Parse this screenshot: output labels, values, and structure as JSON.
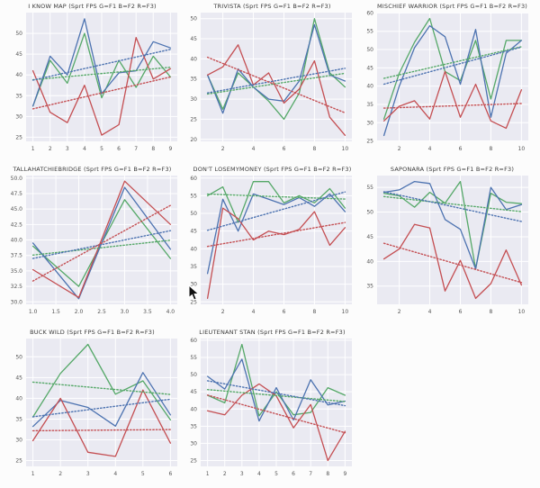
{
  "figure": {
    "background": "#fcfcfc",
    "cursor_icon": "arrow-pointer"
  },
  "style": {
    "axes_background": "#eaeaf2",
    "grid_color": "#ffffff",
    "tick_color": "#555555",
    "title_color": "#3a3a3a",
    "green": "#55a868",
    "blue": "#4c72b0",
    "red": "#c44e52"
  },
  "chart_data": [
    {
      "type": "line",
      "title": "I KNOW MAP (Sprt FPS G=F1 B=F2 R=F3)",
      "x": [
        1,
        2,
        3,
        4,
        5,
        6,
        7,
        8,
        9
      ],
      "xlim": [
        0.6,
        9.4
      ],
      "ylim": [
        24.0,
        55.0
      ],
      "xticks": [
        1,
        2,
        3,
        4,
        5,
        6,
        7,
        8,
        9
      ],
      "xtick_labels": [
        "1",
        "2",
        "3",
        "4",
        "5",
        "6",
        "7",
        "8",
        "9"
      ],
      "yticks": [
        25,
        30,
        35,
        40,
        45,
        50
      ],
      "ytick_labels": [
        "25",
        "30",
        "35",
        "40",
        "45",
        "50"
      ],
      "grid": true,
      "legend": "none",
      "trend_lines": "linear-dotted",
      "series": [
        {
          "name": "G",
          "color": "#55a868",
          "values": [
            32.5,
            43.5,
            38,
            50,
            34.5,
            43.5,
            37,
            44.5,
            39.5
          ]
        },
        {
          "name": "B",
          "color": "#4c72b0",
          "values": [
            32.5,
            44.5,
            40,
            53.5,
            35.5,
            40.5,
            41,
            48,
            46.5
          ]
        },
        {
          "name": "R",
          "color": "#c44e52",
          "values": [
            41,
            31,
            28.5,
            37.5,
            25.5,
            28,
            49,
            39,
            41.5
          ]
        }
      ]
    },
    {
      "type": "line",
      "title": "TRIVISTA (Sprt FPS G=F1 B=F2 R=F3)",
      "x": [
        1,
        2,
        3,
        4,
        5,
        6,
        7,
        8,
        9,
        10
      ],
      "xlim": [
        0.55,
        10.45
      ],
      "ylim": [
        19.5,
        51.5
      ],
      "xticks": [
        2,
        4,
        6,
        8,
        10
      ],
      "xtick_labels": [
        "2",
        "4",
        "6",
        "8",
        "10"
      ],
      "yticks": [
        20,
        25,
        30,
        35,
        40,
        45,
        50
      ],
      "ytick_labels": [
        "20",
        "25",
        "30",
        "35",
        "40",
        "45",
        "50"
      ],
      "grid": true,
      "legend": "none",
      "trend_lines": "linear-dotted",
      "series": [
        {
          "name": "G",
          "color": "#55a868",
          "values": [
            36,
            27.5,
            36.5,
            33,
            29.5,
            25,
            31.5,
            50,
            36.5,
            33
          ]
        },
        {
          "name": "B",
          "color": "#4c72b0",
          "values": [
            36,
            26.5,
            37.5,
            33,
            30,
            29.5,
            34.5,
            48.5,
            36,
            34.5
          ]
        },
        {
          "name": "R",
          "color": "#c44e52",
          "values": [
            36,
            38,
            43.5,
            33.5,
            36.5,
            29,
            32.5,
            39.5,
            25.5,
            21
          ]
        }
      ]
    },
    {
      "type": "line",
      "title": "MISCHIEF WARRIOR (Sprt FPS G=F1 B=F2 R=F3)",
      "x": [
        1,
        2,
        3,
        4,
        5,
        6,
        7,
        8,
        9,
        10
      ],
      "xlim": [
        0.55,
        10.45
      ],
      "ylim": [
        24.9,
        60.1
      ],
      "xticks": [
        2,
        4,
        6,
        8,
        10
      ],
      "xtick_labels": [
        "2",
        "4",
        "6",
        "8",
        "10"
      ],
      "yticks": [
        25,
        30,
        35,
        40,
        45,
        50,
        55,
        60
      ],
      "ytick_labels": [
        "25",
        "30",
        "35",
        "40",
        "45",
        "50",
        "55",
        "60"
      ],
      "grid": true,
      "legend": "none",
      "trend_lines": "linear-dotted",
      "series": [
        {
          "name": "G",
          "color": "#55a868",
          "values": [
            31,
            43.5,
            52,
            58.5,
            44,
            41.5,
            52.5,
            36.5,
            52.5,
            52.5
          ]
        },
        {
          "name": "B",
          "color": "#4c72b0",
          "values": [
            26.5,
            40,
            50.5,
            56.5,
            53.5,
            40.5,
            55.5,
            31.5,
            49,
            52.5
          ]
        },
        {
          "name": "R",
          "color": "#c44e52",
          "values": [
            30.5,
            34.5,
            36,
            31,
            44,
            31.5,
            40.5,
            30.5,
            28.5,
            39
          ]
        }
      ]
    },
    {
      "type": "line",
      "title": "TALLAHATCHIEBRIDGE (Sprt FPS G=F1 B=F2 R=F3)",
      "x": [
        1,
        2,
        3,
        4
      ],
      "xlim": [
        0.85,
        4.15
      ],
      "ylim": [
        29.6,
        50.4
      ],
      "xticks": [
        1,
        1.5,
        2,
        2.5,
        3,
        3.5,
        4
      ],
      "xtick_labels": [
        "1.0",
        "1.5",
        "2.0",
        "2.5",
        "3.0",
        "3.5",
        "4.0"
      ],
      "yticks": [
        30,
        32.5,
        35,
        37.5,
        40,
        42.5,
        45,
        47.5,
        50
      ],
      "ytick_labels": [
        "30.0",
        "32.5",
        "35.0",
        "37.5",
        "40.0",
        "42.5",
        "45.0",
        "47.5",
        "50.0"
      ],
      "grid": true,
      "legend": "none",
      "trend_lines": "linear-dotted",
      "series": [
        {
          "name": "G",
          "color": "#55a868",
          "values": [
            39,
            32.5,
            46.5,
            37
          ]
        },
        {
          "name": "B",
          "color": "#4c72b0",
          "values": [
            39.5,
            30.5,
            48.5,
            38.5
          ]
        },
        {
          "name": "R",
          "color": "#c44e52",
          "values": [
            35.2,
            30.7,
            49.5,
            42.5
          ]
        }
      ]
    },
    {
      "type": "line",
      "title": "DON'T LOSEMYMONEY (Sprt FPS G=F1 B=F2 R=F3)",
      "x": [
        1,
        2,
        3,
        4,
        5,
        6,
        7,
        8,
        9,
        10
      ],
      "xlim": [
        0.55,
        10.45
      ],
      "ylim": [
        24.3,
        60.7
      ],
      "xticks": [
        2,
        4,
        6,
        8,
        10
      ],
      "xtick_labels": [
        "2",
        "4",
        "6",
        "8",
        "10"
      ],
      "yticks": [
        25,
        30,
        35,
        40,
        45,
        50,
        55,
        60
      ],
      "ytick_labels": [
        "25",
        "30",
        "35",
        "40",
        "45",
        "50",
        "55",
        "60"
      ],
      "grid": true,
      "legend": "none",
      "trend_lines": "linear-dotted",
      "series": [
        {
          "name": "G",
          "color": "#55a868",
          "values": [
            55,
            57.5,
            47.5,
            59,
            59,
            53,
            55,
            53,
            57,
            51.5
          ]
        },
        {
          "name": "B",
          "color": "#4c72b0",
          "values": [
            33,
            54,
            45,
            55.5,
            54,
            52.5,
            54.5,
            52,
            55.5,
            50.5
          ]
        },
        {
          "name": "R",
          "color": "#c44e52",
          "values": [
            26,
            51.5,
            48.5,
            42.5,
            45,
            44,
            45.5,
            50.5,
            41,
            46
          ]
        }
      ]
    },
    {
      "type": "line",
      "title": "SAPONARA (Sprt FPS G=F1 B=F2 R=F3)",
      "x": [
        1,
        2,
        3,
        4,
        5,
        6,
        7,
        8,
        9,
        10
      ],
      "xlim": [
        0.55,
        10.45
      ],
      "ylim": [
        31.3,
        57.4
      ],
      "xticks": [
        2,
        4,
        6,
        8,
        10
      ],
      "xtick_labels": [
        "2",
        "4",
        "6",
        "8",
        "10"
      ],
      "yticks": [
        35,
        40,
        45,
        50,
        55
      ],
      "ytick_labels": [
        "35",
        "40",
        "45",
        "50",
        "55"
      ],
      "grid": true,
      "legend": "none",
      "trend_lines": "linear-dotted",
      "series": [
        {
          "name": "G",
          "color": "#55a868",
          "values": [
            53.8,
            53.3,
            51,
            54,
            51.8,
            56.2,
            38.5,
            53.8,
            52,
            51.7
          ]
        },
        {
          "name": "B",
          "color": "#4c72b0",
          "values": [
            54,
            54.5,
            56.2,
            55.8,
            48.5,
            46.5,
            38.5,
            55,
            50.5,
            51.5
          ]
        },
        {
          "name": "R",
          "color": "#c44e52",
          "values": [
            40.5,
            42.5,
            47.5,
            46.8,
            34,
            40.2,
            32.5,
            35.5,
            42.3,
            35.2
          ]
        }
      ]
    },
    {
      "type": "line",
      "title": "BUCK WILD (Sprt FPS G=F1 B=F2 R=F3)",
      "x": [
        1,
        2,
        3,
        4,
        5,
        6
      ],
      "xlim": [
        0.75,
        6.25
      ],
      "ylim": [
        23.6,
        54.4
      ],
      "xticks": [
        1,
        2,
        3,
        4,
        5,
        6
      ],
      "xtick_labels": [
        "1",
        "2",
        "3",
        "4",
        "5",
        "6"
      ],
      "yticks": [
        25,
        30,
        35,
        40,
        45,
        50
      ],
      "ytick_labels": [
        "25",
        "30",
        "35",
        "40",
        "45",
        "50"
      ],
      "grid": true,
      "legend": "none",
      "trend_lines": "linear-dotted",
      "series": [
        {
          "name": "G",
          "color": "#55a868",
          "values": [
            35.5,
            46,
            53,
            41,
            44.2,
            34.8
          ]
        },
        {
          "name": "B",
          "color": "#4c72b0",
          "values": [
            33.2,
            39.5,
            37.8,
            33.3,
            46.2,
            36
          ]
        },
        {
          "name": "R",
          "color": "#c44e52",
          "values": [
            29.8,
            40,
            27,
            26,
            42,
            29.2
          ]
        }
      ]
    },
    {
      "type": "line",
      "title": "LIEUTENANT STAN (Sprt FPS G=F1 B=F2 R=F3)",
      "x": [
        1,
        2,
        3,
        4,
        5,
        6,
        7,
        8,
        9
      ],
      "xlim": [
        0.6,
        9.4
      ],
      "ylim": [
        23.3,
        60.5
      ],
      "xticks": [
        1,
        2,
        3,
        4,
        5,
        6,
        7,
        8,
        9
      ],
      "xtick_labels": [
        "1",
        "2",
        "3",
        "4",
        "5",
        "6",
        "7",
        "8",
        "9"
      ],
      "yticks": [
        25,
        30,
        35,
        40,
        45,
        50,
        55,
        60
      ],
      "ytick_labels": [
        "25",
        "30",
        "35",
        "40",
        "45",
        "50",
        "55",
        "60"
      ],
      "grid": true,
      "legend": "none",
      "trend_lines": "linear-dotted",
      "series": [
        {
          "name": "G",
          "color": "#55a868",
          "values": [
            44,
            41.8,
            58.8,
            38,
            45,
            38.3,
            39,
            46.2,
            44
          ]
        },
        {
          "name": "B",
          "color": "#4c72b0",
          "values": [
            49.5,
            45.8,
            54.5,
            36.5,
            46.2,
            36.8,
            48.5,
            41.2,
            42.3
          ]
        },
        {
          "name": "R",
          "color": "#c44e52",
          "values": [
            39.5,
            38.3,
            44,
            47.3,
            43.8,
            34.5,
            41.3,
            25,
            33.5
          ]
        }
      ]
    }
  ]
}
